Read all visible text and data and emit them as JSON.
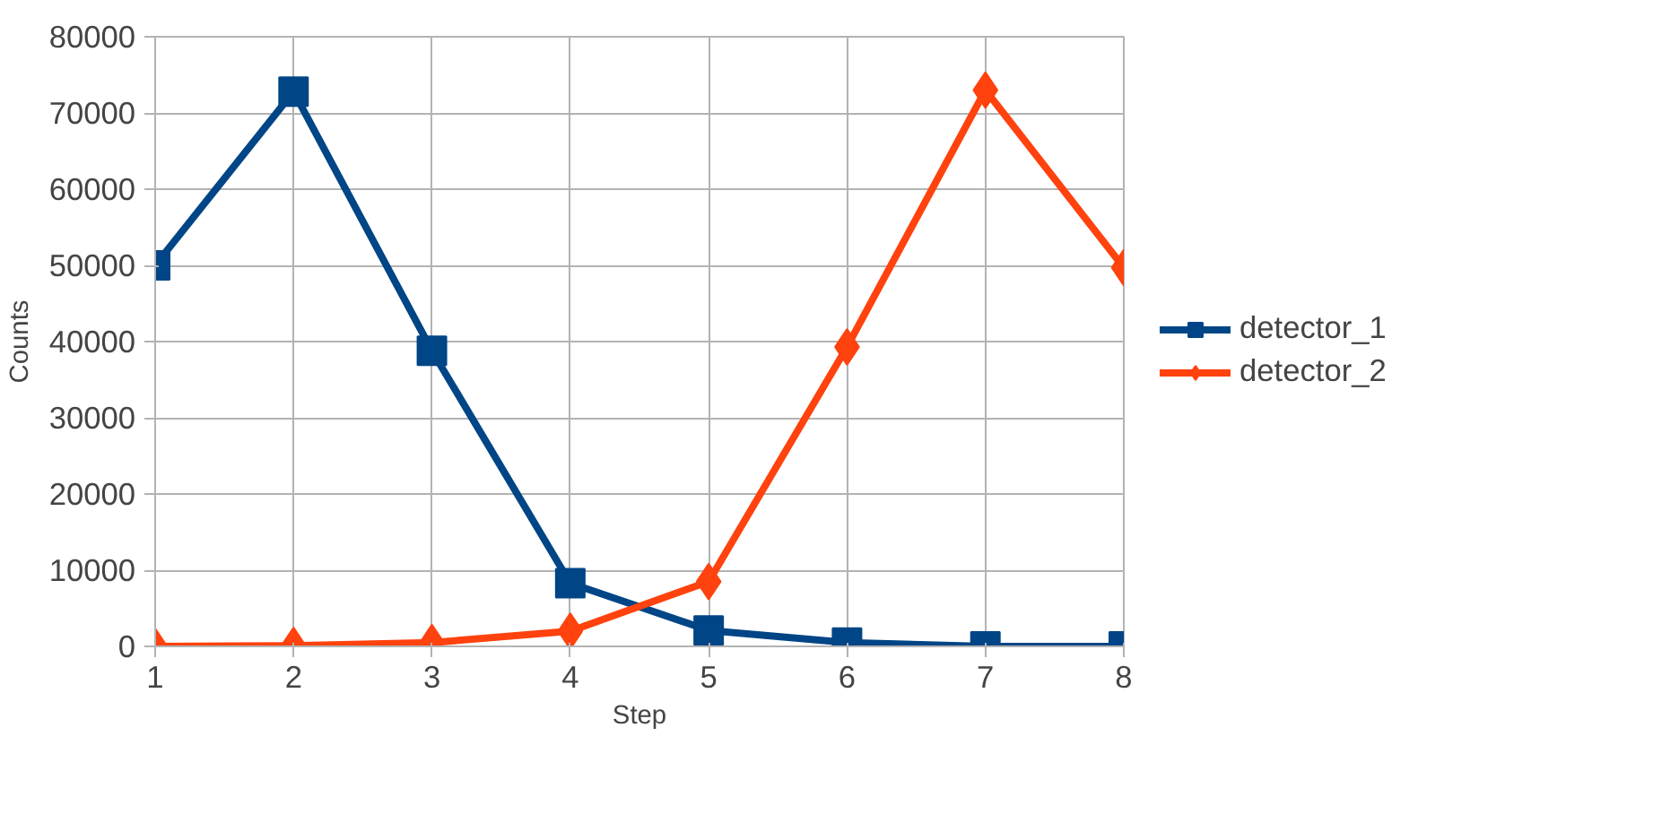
{
  "chart_data": {
    "type": "line",
    "xlabel": "Step",
    "ylabel": "Counts",
    "x": [
      1,
      2,
      3,
      4,
      5,
      6,
      7,
      8
    ],
    "xlim": [
      1,
      8
    ],
    "xticks": [
      1,
      2,
      3,
      4,
      5,
      6,
      7,
      8
    ],
    "ylim": [
      0,
      80000
    ],
    "yticks": [
      0,
      10000,
      20000,
      30000,
      40000,
      50000,
      60000,
      70000,
      80000
    ],
    "grid": true,
    "legend": "right",
    "line_style": "solid",
    "series": [
      {
        "name": "detector_1",
        "color": "#004586",
        "marker": "square",
        "values": [
          50000,
          72800,
          38800,
          8300,
          2100,
          500,
          0,
          0
        ]
      },
      {
        "name": "detector_2",
        "color": "#ff420e",
        "marker": "diamond",
        "values": [
          0,
          100,
          500,
          2000,
          8500,
          39300,
          73000,
          49700
        ]
      }
    ]
  }
}
